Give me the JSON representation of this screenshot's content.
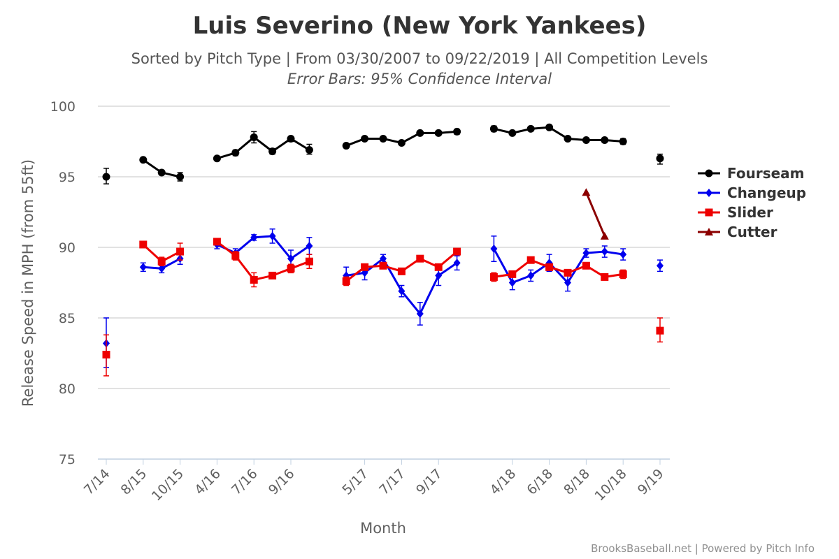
{
  "chart_data": {
    "type": "line",
    "title": "Luis Severino (New York Yankees)",
    "subtitle": "Sorted by Pitch Type | From 03/30/2007 to 09/22/2019 | All Competition Levels",
    "subtitle2": "Error Bars: 95% Confidence Interval",
    "xlabel": "Month",
    "ylabel": "Release Speed in MPH (from 55ft)",
    "ylim": [
      75,
      100
    ],
    "yticks": [
      75,
      80,
      85,
      90,
      95,
      100
    ],
    "grid": true,
    "legend_position": "right",
    "x_slots": 31,
    "tick_labels": [
      {
        "slot": 0,
        "label": "7/14"
      },
      {
        "slot": 2,
        "label": "8/15"
      },
      {
        "slot": 4,
        "label": "10/15"
      },
      {
        "slot": 6,
        "label": "4/16"
      },
      {
        "slot": 8,
        "label": "7/16"
      },
      {
        "slot": 10,
        "label": "9/16"
      },
      {
        "slot": 14,
        "label": "5/17"
      },
      {
        "slot": 16,
        "label": "7/17"
      },
      {
        "slot": 18,
        "label": "9/17"
      },
      {
        "slot": 22,
        "label": "4/18"
      },
      {
        "slot": 24,
        "label": "6/18"
      },
      {
        "slot": 26,
        "label": "8/18"
      },
      {
        "slot": 28,
        "label": "10/18"
      },
      {
        "slot": 30,
        "label": "9/19"
      }
    ],
    "series": [
      {
        "name": "Fourseam",
        "color": "#000000",
        "marker": "circle",
        "segments": [
          [
            {
              "slot": 0,
              "y": 95.0,
              "lo": 94.5,
              "hi": 95.6
            }
          ],
          [
            {
              "slot": 2,
              "y": 96.2,
              "lo": 96.1,
              "hi": 96.3
            },
            {
              "slot": 3,
              "y": 95.3,
              "lo": 95.2,
              "hi": 95.4
            },
            {
              "slot": 4,
              "y": 95.0,
              "lo": 94.7,
              "hi": 95.3
            }
          ],
          [
            {
              "slot": 6,
              "y": 96.3,
              "lo": 96.2,
              "hi": 96.4
            },
            {
              "slot": 7,
              "y": 96.7,
              "lo": 96.5,
              "hi": 96.9
            },
            {
              "slot": 8,
              "y": 97.8,
              "lo": 97.4,
              "hi": 98.2
            },
            {
              "slot": 9,
              "y": 96.8,
              "lo": 96.6,
              "hi": 97.0
            },
            {
              "slot": 10,
              "y": 97.7,
              "lo": 97.5,
              "hi": 97.8
            },
            {
              "slot": 11,
              "y": 96.9,
              "lo": 96.6,
              "hi": 97.3
            }
          ],
          [
            {
              "slot": 13,
              "y": 97.2,
              "lo": 97.1,
              "hi": 97.3
            },
            {
              "slot": 14,
              "y": 97.7,
              "lo": 97.6,
              "hi": 97.8
            },
            {
              "slot": 15,
              "y": 97.7,
              "lo": 97.6,
              "hi": 97.8
            },
            {
              "slot": 16,
              "y": 97.4,
              "lo": 97.3,
              "hi": 97.5
            },
            {
              "slot": 17,
              "y": 98.1,
              "lo": 98.0,
              "hi": 98.2
            },
            {
              "slot": 18,
              "y": 98.1,
              "lo": 98.0,
              "hi": 98.2
            },
            {
              "slot": 19,
              "y": 98.2,
              "lo": 98.0,
              "hi": 98.3
            }
          ],
          [
            {
              "slot": 21,
              "y": 98.4,
              "lo": 98.2,
              "hi": 98.6
            },
            {
              "slot": 22,
              "y": 98.1,
              "lo": 98.0,
              "hi": 98.2
            },
            {
              "slot": 23,
              "y": 98.4,
              "lo": 98.3,
              "hi": 98.5
            },
            {
              "slot": 24,
              "y": 98.5,
              "lo": 98.4,
              "hi": 98.6
            },
            {
              "slot": 25,
              "y": 97.7,
              "lo": 97.6,
              "hi": 97.8
            },
            {
              "slot": 26,
              "y": 97.6,
              "lo": 97.5,
              "hi": 97.7
            },
            {
              "slot": 27,
              "y": 97.6,
              "lo": 97.5,
              "hi": 97.7
            },
            {
              "slot": 28,
              "y": 97.5,
              "lo": 97.3,
              "hi": 97.7
            }
          ],
          [
            {
              "slot": 30,
              "y": 96.3,
              "lo": 95.9,
              "hi": 96.6
            }
          ]
        ]
      },
      {
        "name": "Changeup",
        "color": "#0000ee",
        "marker": "diamond",
        "segments": [
          [
            {
              "slot": 0,
              "y": 83.2,
              "lo": 81.5,
              "hi": 85.0
            }
          ],
          [
            {
              "slot": 2,
              "y": 88.6,
              "lo": 88.3,
              "hi": 88.9
            },
            {
              "slot": 3,
              "y": 88.5,
              "lo": 88.2,
              "hi": 88.8
            },
            {
              "slot": 4,
              "y": 89.2,
              "lo": 88.8,
              "hi": 89.6
            }
          ],
          [
            {
              "slot": 6,
              "y": 90.2,
              "lo": 89.9,
              "hi": 90.5
            },
            {
              "slot": 7,
              "y": 89.6,
              "lo": 89.3,
              "hi": 89.9
            },
            {
              "slot": 8,
              "y": 90.7,
              "lo": 90.5,
              "hi": 90.9
            },
            {
              "slot": 9,
              "y": 90.8,
              "lo": 90.3,
              "hi": 91.3
            },
            {
              "slot": 10,
              "y": 89.2,
              "lo": 88.6,
              "hi": 89.8
            },
            {
              "slot": 11,
              "y": 90.1,
              "lo": 89.5,
              "hi": 90.7
            }
          ],
          [
            {
              "slot": 13,
              "y": 88.0,
              "lo": 87.4,
              "hi": 88.6
            },
            {
              "slot": 14,
              "y": 88.2,
              "lo": 87.7,
              "hi": 88.7
            },
            {
              "slot": 15,
              "y": 89.2,
              "lo": 88.9,
              "hi": 89.5
            },
            {
              "slot": 16,
              "y": 86.9,
              "lo": 86.5,
              "hi": 87.3
            },
            {
              "slot": 17,
              "y": 85.3,
              "lo": 84.5,
              "hi": 86.1
            },
            {
              "slot": 18,
              "y": 88.0,
              "lo": 87.3,
              "hi": 88.7
            },
            {
              "slot": 19,
              "y": 88.9,
              "lo": 88.4,
              "hi": 89.4
            }
          ],
          [
            {
              "slot": 21,
              "y": 89.9,
              "lo": 89.0,
              "hi": 90.8
            },
            {
              "slot": 22,
              "y": 87.5,
              "lo": 87.0,
              "hi": 88.0
            },
            {
              "slot": 23,
              "y": 88.0,
              "lo": 87.6,
              "hi": 88.4
            },
            {
              "slot": 24,
              "y": 88.9,
              "lo": 88.3,
              "hi": 89.5
            },
            {
              "slot": 25,
              "y": 87.5,
              "lo": 86.9,
              "hi": 88.1
            },
            {
              "slot": 26,
              "y": 89.6,
              "lo": 89.3,
              "hi": 89.9
            },
            {
              "slot": 27,
              "y": 89.7,
              "lo": 89.3,
              "hi": 90.1
            },
            {
              "slot": 28,
              "y": 89.5,
              "lo": 89.1,
              "hi": 89.9
            }
          ],
          [
            {
              "slot": 30,
              "y": 88.7,
              "lo": 88.3,
              "hi": 89.1
            }
          ]
        ]
      },
      {
        "name": "Slider",
        "color": "#ee0000",
        "marker": "square",
        "segments": [
          [
            {
              "slot": 0,
              "y": 82.4,
              "lo": 80.9,
              "hi": 83.8
            }
          ],
          [
            {
              "slot": 2,
              "y": 90.2,
              "lo": 90.0,
              "hi": 90.4
            },
            {
              "slot": 3,
              "y": 89.0,
              "lo": 88.7,
              "hi": 89.3
            },
            {
              "slot": 4,
              "y": 89.7,
              "lo": 89.1,
              "hi": 90.3
            }
          ],
          [
            {
              "slot": 6,
              "y": 90.4,
              "lo": 90.2,
              "hi": 90.6
            },
            {
              "slot": 7,
              "y": 89.4,
              "lo": 89.1,
              "hi": 89.7
            },
            {
              "slot": 8,
              "y": 87.7,
              "lo": 87.2,
              "hi": 88.2
            },
            {
              "slot": 9,
              "y": 88.0,
              "lo": 87.8,
              "hi": 88.2
            },
            {
              "slot": 10,
              "y": 88.5,
              "lo": 88.2,
              "hi": 88.8
            },
            {
              "slot": 11,
              "y": 89.0,
              "lo": 88.5,
              "hi": 89.5
            }
          ],
          [
            {
              "slot": 13,
              "y": 87.6,
              "lo": 87.3,
              "hi": 87.9
            },
            {
              "slot": 14,
              "y": 88.6,
              "lo": 88.4,
              "hi": 88.8
            },
            {
              "slot": 15,
              "y": 88.7,
              "lo": 88.5,
              "hi": 88.9
            },
            {
              "slot": 16,
              "y": 88.3,
              "lo": 88.1,
              "hi": 88.5
            },
            {
              "slot": 17,
              "y": 89.2,
              "lo": 89.0,
              "hi": 89.4
            },
            {
              "slot": 18,
              "y": 88.6,
              "lo": 88.4,
              "hi": 88.8
            },
            {
              "slot": 19,
              "y": 89.7,
              "lo": 89.5,
              "hi": 89.9
            }
          ],
          [
            {
              "slot": 21,
              "y": 87.9,
              "lo": 87.6,
              "hi": 88.2
            },
            {
              "slot": 22,
              "y": 88.1,
              "lo": 87.9,
              "hi": 88.3
            },
            {
              "slot": 23,
              "y": 89.1,
              "lo": 88.9,
              "hi": 89.3
            },
            {
              "slot": 24,
              "y": 88.6,
              "lo": 88.4,
              "hi": 88.8
            },
            {
              "slot": 25,
              "y": 88.2,
              "lo": 88.0,
              "hi": 88.4
            },
            {
              "slot": 26,
              "y": 88.7,
              "lo": 88.5,
              "hi": 88.9
            },
            {
              "slot": 27,
              "y": 87.9,
              "lo": 87.7,
              "hi": 88.1
            },
            {
              "slot": 28,
              "y": 88.1,
              "lo": 87.8,
              "hi": 88.4
            }
          ],
          [
            {
              "slot": 30,
              "y": 84.1,
              "lo": 83.3,
              "hi": 85.0
            }
          ]
        ]
      },
      {
        "name": "Cutter",
        "color": "#8b0000",
        "marker": "triangle",
        "segments": [
          [
            {
              "slot": 26,
              "y": 93.9
            },
            {
              "slot": 27,
              "y": 90.8
            }
          ]
        ]
      }
    ],
    "legend_entries": [
      "Fourseam",
      "Changeup",
      "Slider",
      "Cutter"
    ]
  },
  "credit": "BrooksBaseball.net | Powered by Pitch Info"
}
